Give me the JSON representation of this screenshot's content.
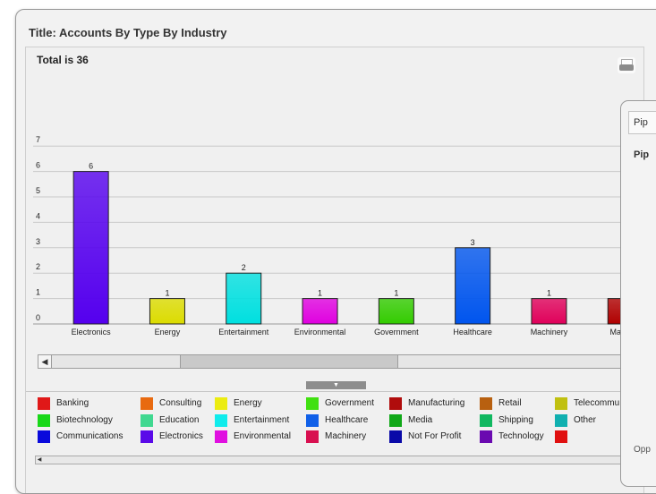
{
  "dashlet": {
    "title": "Title: Accounts By Type By Industry",
    "total": "Total is 36"
  },
  "chart_data": {
    "type": "bar",
    "title": "",
    "xlabel": "",
    "ylabel": "",
    "ylim": [
      0,
      7
    ],
    "y_ticks": [
      "0",
      "1",
      "2",
      "3",
      "4",
      "5",
      "6",
      "7"
    ],
    "categories": [
      "Electronics",
      "Energy",
      "Entertainment",
      "Environmental",
      "Government",
      "Healthcare",
      "Machinery",
      "Manufac"
    ],
    "values": [
      6,
      1,
      2,
      1,
      1,
      3,
      1,
      1
    ],
    "value_labels": [
      "6",
      "1",
      "2",
      "1",
      "1",
      "3",
      "1",
      "1"
    ],
    "colors": [
      "#5500ee",
      "#dcdc00",
      "#00e0e0",
      "#e000e0",
      "#33cc00",
      "#0055ee",
      "#e0005a",
      "#b00000"
    ],
    "grid": true
  },
  "legend": [
    {
      "label": "Banking",
      "color": "#e01818"
    },
    {
      "label": "Biotechnology",
      "color": "#18d818"
    },
    {
      "label": "Communications",
      "color": "#0a0adc"
    },
    {
      "label": "Consulting",
      "color": "#e86a10"
    },
    {
      "label": "Education",
      "color": "#40d890"
    },
    {
      "label": "Electronics",
      "color": "#5a0ae8"
    },
    {
      "label": "Energy",
      "color": "#ecec10"
    },
    {
      "label": "Entertainment",
      "color": "#10ecec"
    },
    {
      "label": "Environmental",
      "color": "#e010e0"
    },
    {
      "label": "Government",
      "color": "#40e010"
    },
    {
      "label": "Healthcare",
      "color": "#1060e8"
    },
    {
      "label": "Machinery",
      "color": "#d81050"
    },
    {
      "label": "Manufacturing",
      "color": "#b00c0c"
    },
    {
      "label": "Media",
      "color": "#10a818"
    },
    {
      "label": "Not For Profit",
      "color": "#0a0aa8"
    },
    {
      "label": "Retail",
      "color": "#b86010"
    },
    {
      "label": "Shipping",
      "color": "#10b860"
    },
    {
      "label": "Technology",
      "color": "#6a0ab0"
    },
    {
      "label": "Telecommu",
      "color": "#c0c010"
    },
    {
      "label": "Other",
      "color": "#10b0b0"
    },
    {
      "label": "",
      "color": "#e01010"
    }
  ],
  "popup": {
    "tab_label": "Pip",
    "subtitle": "Pip",
    "footer": "Opp"
  },
  "icons": {
    "print": "print-icon",
    "scroll_left": "arrow-left-icon",
    "collapse": "triangle-down-icon"
  },
  "glyphs": {
    "left_arrow": "◀",
    "down_triangle": "▼"
  }
}
